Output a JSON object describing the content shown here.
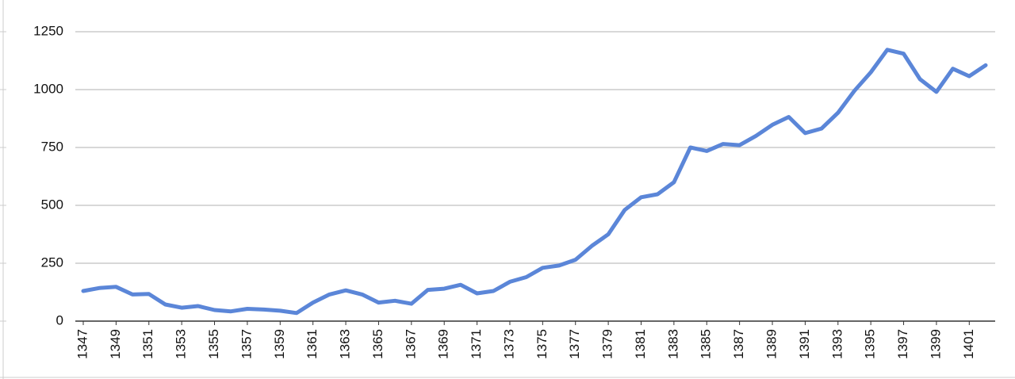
{
  "chart_data": {
    "type": "line",
    "x": [
      1347,
      1348,
      1349,
      1350,
      1351,
      1352,
      1353,
      1354,
      1355,
      1356,
      1357,
      1358,
      1359,
      1360,
      1361,
      1362,
      1363,
      1364,
      1365,
      1366,
      1367,
      1368,
      1369,
      1370,
      1371,
      1372,
      1373,
      1374,
      1375,
      1376,
      1377,
      1378,
      1379,
      1380,
      1381,
      1382,
      1383,
      1384,
      1385,
      1386,
      1387,
      1388,
      1389,
      1390,
      1391,
      1392,
      1393,
      1394,
      1395,
      1396,
      1397,
      1398,
      1399,
      1400,
      1401,
      1402
    ],
    "values": [
      130,
      143,
      148,
      115,
      117,
      72,
      58,
      65,
      48,
      42,
      53,
      50,
      45,
      35,
      80,
      115,
      133,
      115,
      80,
      88,
      75,
      135,
      140,
      157,
      120,
      130,
      170,
      190,
      230,
      240,
      265,
      325,
      375,
      480,
      535,
      548,
      600,
      750,
      735,
      765,
      760,
      800,
      848,
      882,
      812,
      832,
      900,
      995,
      1075,
      1172,
      1155,
      1045,
      990,
      1090,
      1058,
      1105
    ],
    "color": "#5b86d8",
    "xlim": [
      1347,
      1402
    ],
    "xticks": [
      1347,
      1349,
      1351,
      1353,
      1355,
      1357,
      1359,
      1361,
      1363,
      1365,
      1367,
      1369,
      1371,
      1373,
      1375,
      1377,
      1379,
      1381,
      1383,
      1385,
      1387,
      1389,
      1391,
      1393,
      1395,
      1397,
      1399,
      1401
    ],
    "ylim": [
      0,
      1250
    ],
    "yticks": [
      0,
      250,
      500,
      750,
      1000,
      1250
    ],
    "grid": true
  }
}
